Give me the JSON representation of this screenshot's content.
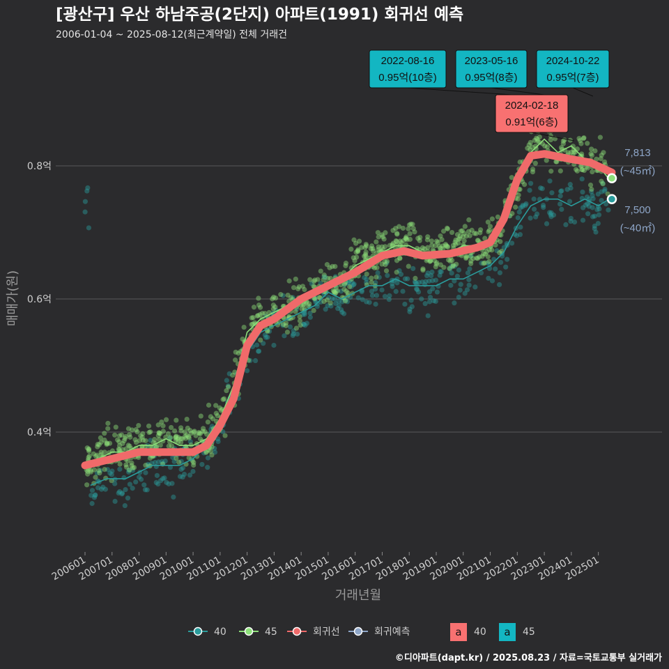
{
  "chart_data": {
    "type": "scatter",
    "title": "[광산구] 우산 하남주공(2단지) 아파트(1991) 회귀선 예측",
    "subtitle": "2006-01-04 ~ 2025-08-12(최근계약일) 전체 거래건",
    "xlabel": "거래년월",
    "ylabel": "매매가(원)",
    "ylim": [
      0.22,
      0.98
    ],
    "y_ticks": [
      {
        "value": 0.4,
        "label": "0.4억"
      },
      {
        "value": 0.6,
        "label": "0.6억"
      },
      {
        "value": 0.8,
        "label": "0.8억"
      }
    ],
    "x_ticks": [
      "200601",
      "200701",
      "200801",
      "200901",
      "201001",
      "201101",
      "201201",
      "201301",
      "201401",
      "201501",
      "201601",
      "201701",
      "201801",
      "201901",
      "202001",
      "202101",
      "202201",
      "202301",
      "202401",
      "202501"
    ],
    "grid": true,
    "colors": {
      "s40": "#2a9c9c",
      "s45": "#8de07a",
      "regression": "#f06a6a",
      "forecast": "#8ea6c8",
      "ann45": "#13b6c2",
      "ann40": "#f87171"
    },
    "series": [
      {
        "name": "40",
        "points": [
          [
            2006.2,
            0.32
          ],
          [
            2006.8,
            0.33
          ],
          [
            2007.5,
            0.33
          ],
          [
            2008.0,
            0.34
          ],
          [
            2008.5,
            0.35
          ],
          [
            2009.0,
            0.35
          ],
          [
            2009.5,
            0.35
          ],
          [
            2010.0,
            0.36
          ],
          [
            2010.5,
            0.38
          ],
          [
            2011.0,
            0.41
          ],
          [
            2011.5,
            0.47
          ],
          [
            2012.0,
            0.52
          ],
          [
            2012.5,
            0.55
          ],
          [
            2013.0,
            0.56
          ],
          [
            2013.5,
            0.57
          ],
          [
            2014.0,
            0.58
          ],
          [
            2014.5,
            0.59
          ],
          [
            2015.0,
            0.61
          ],
          [
            2015.5,
            0.6
          ],
          [
            2016.0,
            0.61
          ],
          [
            2016.5,
            0.62
          ],
          [
            2017.0,
            0.62
          ],
          [
            2017.5,
            0.63
          ],
          [
            2018.0,
            0.62
          ],
          [
            2018.5,
            0.62
          ],
          [
            2019.0,
            0.62
          ],
          [
            2019.5,
            0.63
          ],
          [
            2020.0,
            0.63
          ],
          [
            2020.5,
            0.64
          ],
          [
            2021.0,
            0.65
          ],
          [
            2021.5,
            0.67
          ],
          [
            2022.0,
            0.71
          ],
          [
            2022.5,
            0.74
          ],
          [
            2023.0,
            0.75
          ],
          [
            2023.5,
            0.75
          ],
          [
            2024.0,
            0.74
          ],
          [
            2024.5,
            0.75
          ],
          [
            2025.0,
            0.74
          ],
          [
            2025.4,
            0.75
          ]
        ]
      },
      {
        "name": "45",
        "points": [
          [
            2006.0,
            0.35
          ],
          [
            2006.5,
            0.36
          ],
          [
            2007.0,
            0.37
          ],
          [
            2007.5,
            0.37
          ],
          [
            2008.0,
            0.38
          ],
          [
            2008.5,
            0.38
          ],
          [
            2009.0,
            0.39
          ],
          [
            2009.5,
            0.38
          ],
          [
            2010.0,
            0.38
          ],
          [
            2010.5,
            0.39
          ],
          [
            2011.0,
            0.42
          ],
          [
            2011.5,
            0.47
          ],
          [
            2012.0,
            0.55
          ],
          [
            2012.5,
            0.57
          ],
          [
            2013.0,
            0.58
          ],
          [
            2013.5,
            0.59
          ],
          [
            2014.0,
            0.6
          ],
          [
            2014.5,
            0.61
          ],
          [
            2015.0,
            0.62
          ],
          [
            2015.5,
            0.63
          ],
          [
            2016.0,
            0.65
          ],
          [
            2016.5,
            0.66
          ],
          [
            2017.0,
            0.67
          ],
          [
            2017.5,
            0.68
          ],
          [
            2018.0,
            0.68
          ],
          [
            2018.5,
            0.67
          ],
          [
            2019.0,
            0.67
          ],
          [
            2019.5,
            0.67
          ],
          [
            2020.0,
            0.68
          ],
          [
            2020.5,
            0.68
          ],
          [
            2021.0,
            0.69
          ],
          [
            2021.5,
            0.71
          ],
          [
            2022.0,
            0.77
          ],
          [
            2022.5,
            0.82
          ],
          [
            2023.0,
            0.84
          ],
          [
            2023.5,
            0.82
          ],
          [
            2024.0,
            0.83
          ],
          [
            2024.5,
            0.81
          ],
          [
            2025.0,
            0.8
          ],
          [
            2025.4,
            0.78
          ]
        ]
      },
      {
        "name": "회귀선",
        "points": [
          [
            2006.0,
            0.35
          ],
          [
            2007.0,
            0.36
          ],
          [
            2008.0,
            0.37
          ],
          [
            2009.0,
            0.37
          ],
          [
            2010.0,
            0.37
          ],
          [
            2010.5,
            0.38
          ],
          [
            2011.0,
            0.41
          ],
          [
            2011.5,
            0.45
          ],
          [
            2012.0,
            0.53
          ],
          [
            2012.5,
            0.56
          ],
          [
            2013.0,
            0.57
          ],
          [
            2014.0,
            0.6
          ],
          [
            2015.0,
            0.62
          ],
          [
            2016.0,
            0.64
          ],
          [
            2017.0,
            0.665
          ],
          [
            2017.8,
            0.672
          ],
          [
            2018.5,
            0.665
          ],
          [
            2019.5,
            0.668
          ],
          [
            2020.5,
            0.677
          ],
          [
            2021.0,
            0.685
          ],
          [
            2021.5,
            0.72
          ],
          [
            2022.0,
            0.78
          ],
          [
            2022.5,
            0.815
          ],
          [
            2023.0,
            0.818
          ],
          [
            2024.0,
            0.81
          ],
          [
            2024.7,
            0.805
          ],
          [
            2025.5,
            0.79
          ]
        ]
      },
      {
        "name": "회귀예측",
        "points": [
          [
            2025.5,
            0.7813
          ],
          [
            2025.5,
            0.75
          ]
        ]
      }
    ],
    "annotations": [
      {
        "date": "2022-08-16",
        "value": "0.95억(10층)",
        "series": "45"
      },
      {
        "date": "2023-05-16",
        "value": "0.95억(8층)",
        "series": "45"
      },
      {
        "date": "2024-10-22",
        "value": "0.95억(7층)",
        "series": "45"
      },
      {
        "date": "2024-02-18",
        "value": "0.91억(6층)",
        "series": "40"
      }
    ],
    "end_labels": [
      {
        "price": "7,813",
        "area": "(~45㎡)",
        "y": 0.7813
      },
      {
        "price": "7,500",
        "area": "(~40㎡)",
        "y": 0.75
      }
    ],
    "legend": {
      "placement": "bottom",
      "lines": [
        {
          "label": "40",
          "color": "#2a9c9c"
        },
        {
          "label": "45",
          "color": "#8de07a"
        },
        {
          "label": "회귀선",
          "color": "#f06a6a"
        },
        {
          "label": "회귀예측",
          "color": "#8ea6c8"
        }
      ],
      "boxes": [
        {
          "glyph": "a",
          "label": "40",
          "color": "#f87171"
        },
        {
          "glyph": "a",
          "label": "45",
          "color": "#13b6c2"
        }
      ]
    }
  },
  "credit": "©디아파트(dapt.kr) / 2025.08.23 / 자료=국토교통부 실거래가"
}
